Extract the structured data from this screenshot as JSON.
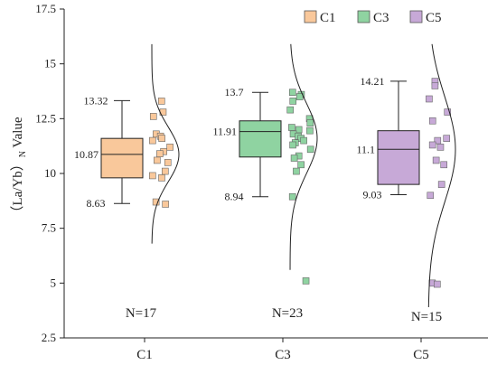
{
  "chart_data": {
    "type": "box",
    "ylabel_main": "（La/Yb）",
    "ylabel_sub": "N",
    "ylabel_tail": "Value",
    "ylim": [
      2.5,
      17.5
    ],
    "yticks": [
      "2.5",
      "5",
      "7.5",
      "10",
      "12.5",
      "15",
      "17.5"
    ],
    "yticks_values": [
      2.5,
      5,
      7.5,
      10,
      12.5,
      15,
      17.5
    ],
    "categories": [
      "C1",
      "C3",
      "C5"
    ],
    "legend": [
      {
        "name": "C1",
        "color": "#f9c89b"
      },
      {
        "name": "C3",
        "color": "#8fd3a1"
      },
      {
        "name": "C5",
        "color": "#c7a9d7"
      }
    ],
    "groups": [
      {
        "name": "C1",
        "fill": "#f9c89b",
        "point_fill": "#f9c89b",
        "box": {
          "q1": 9.8,
          "median": 10.87,
          "q3": 11.6,
          "whisker_low": 8.63,
          "whisker_high": 13.32
        },
        "labels": {
          "median": "10.87",
          "min": "8.63",
          "max": "13.32"
        },
        "count_label": "N=17",
        "points": [
          13.3,
          12.8,
          12.6,
          11.8,
          11.7,
          11.6,
          11.5,
          11.2,
          11.0,
          10.9,
          10.6,
          10.5,
          10.1,
          9.9,
          9.8,
          8.7,
          8.6
        ],
        "curve": {
          "mean": 10.87,
          "sd": 1.25
        }
      },
      {
        "name": "C3",
        "fill": "#8fd3a1",
        "point_fill": "#8fd3a1",
        "box": {
          "q1": 10.75,
          "median": 11.91,
          "q3": 12.4,
          "whisker_low": 8.94,
          "whisker_high": 13.7
        },
        "labels": {
          "median": "11.91",
          "min": "8.94",
          "max": "13.7"
        },
        "count_label": "N=23",
        "points": [
          13.7,
          13.6,
          13.5,
          13.3,
          12.9,
          12.5,
          12.3,
          12.1,
          12.0,
          11.95,
          11.8,
          11.7,
          11.6,
          11.5,
          11.4,
          11.3,
          11.1,
          10.8,
          10.7,
          10.4,
          10.1,
          8.94,
          5.1
        ],
        "curve": {
          "mean": 11.6,
          "sd": 1.6
        }
      },
      {
        "name": "C5",
        "fill": "#c7a9d7",
        "point_fill": "#c7a9d7",
        "box": {
          "q1": 9.5,
          "median": 11.1,
          "q3": 11.95,
          "whisker_low": 9.03,
          "whisker_high": 14.21
        },
        "labels": {
          "median": "11.1",
          "min": "9.03",
          "max": "14.21"
        },
        "count_label": "N=15",
        "points": [
          14.2,
          14.0,
          13.4,
          12.8,
          12.4,
          11.6,
          11.5,
          11.3,
          11.2,
          10.6,
          10.4,
          9.5,
          9.0,
          5.0,
          4.95
        ],
        "curve": {
          "mean": 11.1,
          "sd": 2.4
        }
      }
    ]
  }
}
